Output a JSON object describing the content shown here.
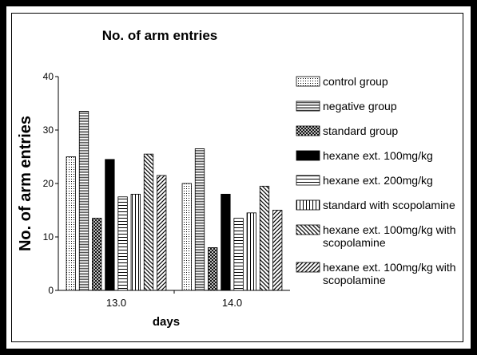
{
  "chart_data": {
    "type": "bar",
    "title": "No. of arm entries",
    "x_label": "days",
    "y_label": "No. of arm entries",
    "categories": [
      "13.0",
      "14.0"
    ],
    "series": [
      {
        "name": "control group",
        "color": "#000000",
        "pattern": "dots",
        "values": [
          25,
          20
        ]
      },
      {
        "name": "negative group",
        "color": "#000000",
        "pattern": "horizontal-fine",
        "values": [
          33.5,
          26.5
        ]
      },
      {
        "name": "standard group",
        "color": "#000000",
        "pattern": "crosshatch",
        "values": [
          13.5,
          8
        ]
      },
      {
        "name": "hexane ext. 100mg/kg",
        "color": "#000000",
        "pattern": "solid",
        "values": [
          24.5,
          18
        ]
      },
      {
        "name": "hexane ext. 200mg/kg",
        "color": "#000000",
        "pattern": "horizontal",
        "values": [
          17.5,
          13.5
        ]
      },
      {
        "name": "standard with scopolamine",
        "color": "#000000",
        "pattern": "vertical",
        "values": [
          18,
          14.5
        ]
      },
      {
        "name": "hexane ext. 100mg/kg with scopolamine",
        "color": "#000000",
        "pattern": "diagonal-down",
        "values": [
          25.5,
          19.5
        ]
      },
      {
        "name": "hexane ext. 100mg/kg with scopolamine",
        "color": "#000000",
        "pattern": "diagonal-up",
        "values": [
          21.5,
          15
        ]
      }
    ],
    "ylim": [
      0,
      40
    ],
    "yticks": [
      0,
      10,
      20,
      30,
      40
    ],
    "grid": false,
    "legend": "right"
  }
}
